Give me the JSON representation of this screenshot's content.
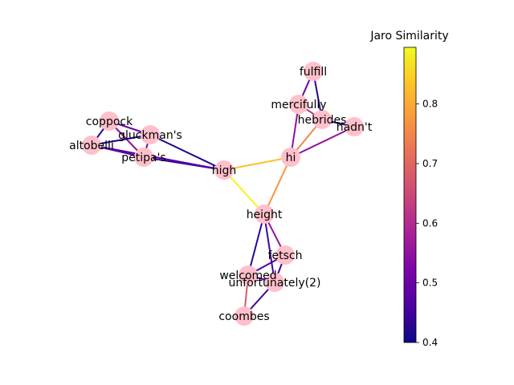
{
  "graph": {
    "nodes": [
      {
        "id": "fulfill",
        "label": "fulfill"
      },
      {
        "id": "mercifully",
        "label": "mercifully"
      },
      {
        "id": "hebrides",
        "label": "hebrides"
      },
      {
        "id": "hadn't",
        "label": "hadn't"
      },
      {
        "id": "hi",
        "label": "hi"
      },
      {
        "id": "coppock",
        "label": "coppock"
      },
      {
        "id": "gluckman's",
        "label": "gluckman's"
      },
      {
        "id": "altobelli",
        "label": "altobelli"
      },
      {
        "id": "petipa's",
        "label": "petipa's"
      },
      {
        "id": "high",
        "label": "high"
      },
      {
        "id": "height",
        "label": "height"
      },
      {
        "id": "fetsch",
        "label": "fetsch"
      },
      {
        "id": "welcomed",
        "label": "welcomed"
      },
      {
        "id": "unfortunately(2)",
        "label": "unfortunately(2)"
      },
      {
        "id": "coombes",
        "label": "coombes"
      }
    ],
    "edges": [
      {
        "source": "fulfill",
        "target": "mercifully",
        "similarity": 0.5
      },
      {
        "source": "fulfill",
        "target": "hebrides",
        "similarity": 0.42
      },
      {
        "source": "mercifully",
        "target": "hebrides",
        "similarity": 0.62
      },
      {
        "source": "mercifully",
        "target": "hi",
        "similarity": 0.55
      },
      {
        "source": "hebrides",
        "target": "hadn't",
        "similarity": 0.42
      },
      {
        "source": "hebrides",
        "target": "hi",
        "similarity": 0.75
      },
      {
        "source": "hadn't",
        "target": "hi",
        "similarity": 0.55
      },
      {
        "source": "hi",
        "target": "high",
        "similarity": 0.83
      },
      {
        "source": "hi",
        "target": "height",
        "similarity": 0.77
      },
      {
        "source": "high",
        "target": "height",
        "similarity": 0.89
      },
      {
        "source": "high",
        "target": "gluckman's",
        "similarity": 0.42
      },
      {
        "source": "high",
        "target": "petipa's",
        "similarity": 0.45
      },
      {
        "source": "high",
        "target": "altobelli",
        "similarity": 0.47
      },
      {
        "source": "coppock",
        "target": "gluckman's",
        "similarity": 0.5
      },
      {
        "source": "coppock",
        "target": "altobelli",
        "similarity": 0.43
      },
      {
        "source": "coppock",
        "target": "petipa's",
        "similarity": 0.55
      },
      {
        "source": "gluckman's",
        "target": "altobelli",
        "similarity": 0.42
      },
      {
        "source": "gluckman's",
        "target": "petipa's",
        "similarity": 0.5
      },
      {
        "source": "altobelli",
        "target": "petipa's",
        "similarity": 0.48
      },
      {
        "source": "height",
        "target": "fetsch",
        "similarity": 0.56
      },
      {
        "source": "height",
        "target": "welcomed",
        "similarity": 0.43
      },
      {
        "source": "height",
        "target": "unfortunately(2)",
        "similarity": 0.45
      },
      {
        "source": "fetsch",
        "target": "welcomed",
        "similarity": 0.47
      },
      {
        "source": "fetsch",
        "target": "unfortunately(2)",
        "similarity": 0.45
      },
      {
        "source": "welcomed",
        "target": "unfortunately(2)",
        "similarity": 0.48
      },
      {
        "source": "welcomed",
        "target": "coombes",
        "similarity": 0.68
      },
      {
        "source": "unfortunately(2)",
        "target": "coombes",
        "similarity": 0.45
      }
    ]
  },
  "colorbar": {
    "title": "Jaro Similarity",
    "min": 0.4,
    "max": 0.895,
    "colormap": "plasma",
    "ticks": [
      "0.4",
      "0.5",
      "0.6",
      "0.7",
      "0.8"
    ],
    "tick_values": [
      0.4,
      0.5,
      0.6,
      0.7,
      0.8
    ]
  },
  "style": {
    "node_color": "#ffc0cb"
  }
}
